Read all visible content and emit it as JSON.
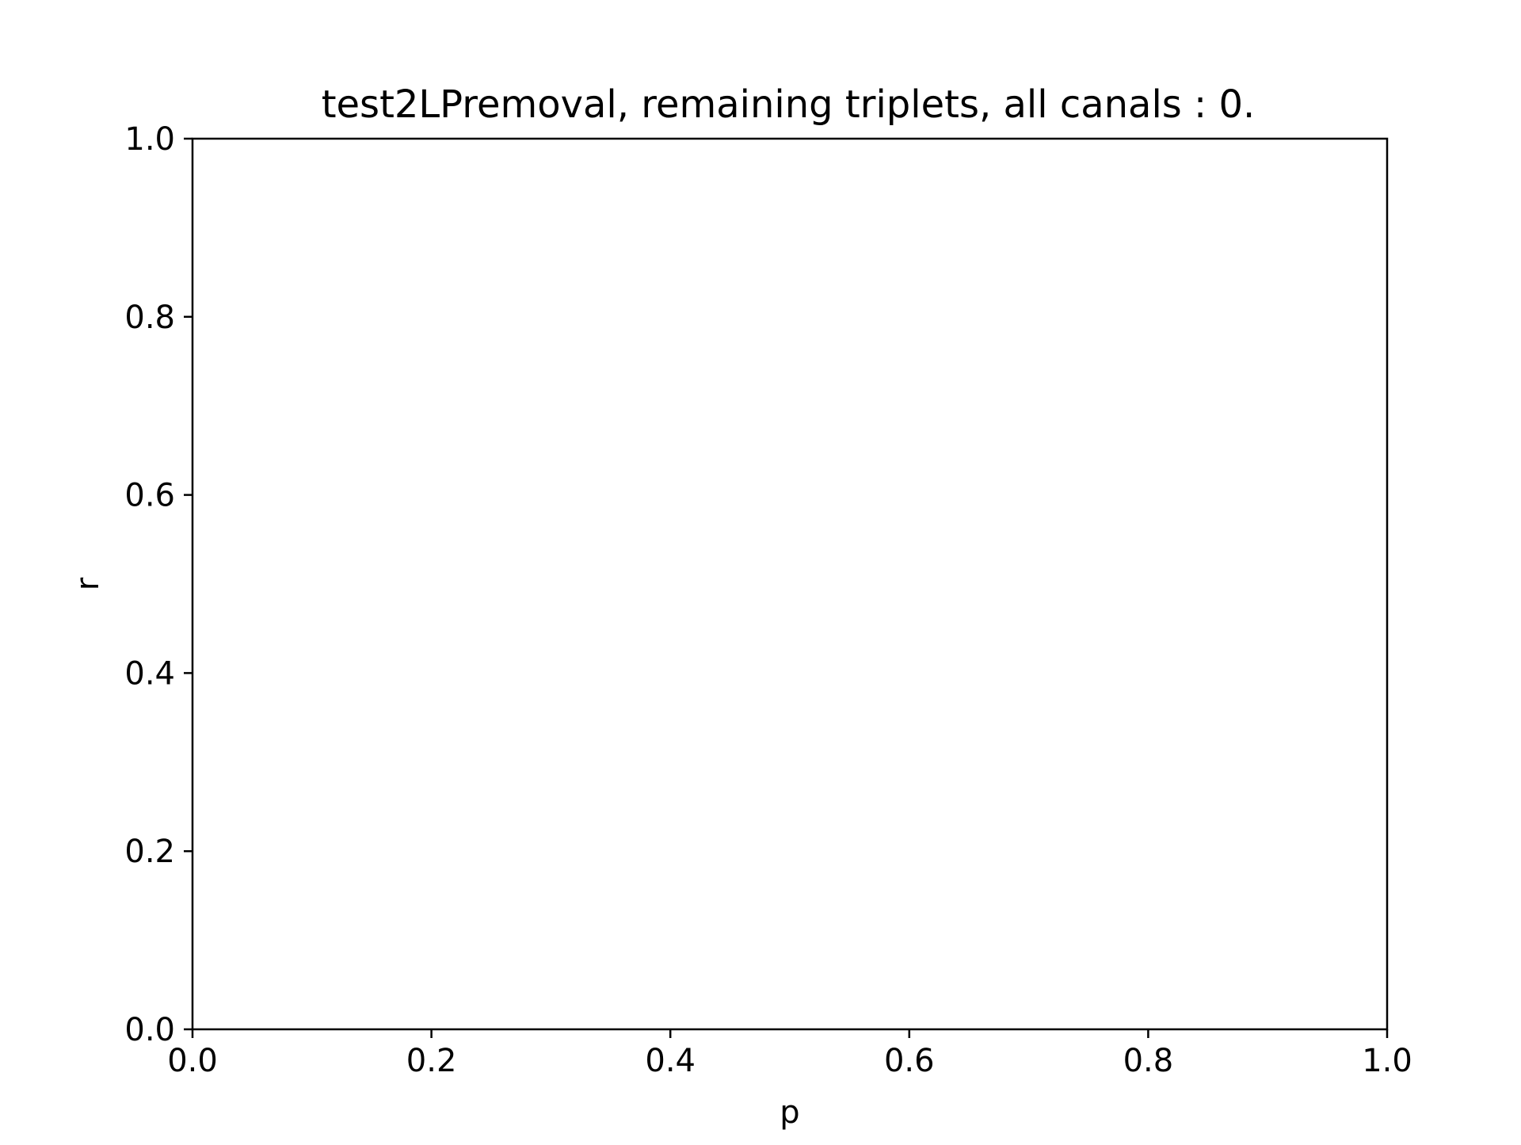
{
  "chart_data": {
    "type": "scatter",
    "title": "test2LPremoval, remaining triplets, all canals : 0.",
    "xlabel": "p",
    "ylabel": "r",
    "xlim": [
      0.0,
      1.0
    ],
    "ylim": [
      0.0,
      1.0
    ],
    "xticks": [
      0.0,
      0.2,
      0.4,
      0.6,
      0.8,
      1.0
    ],
    "yticks": [
      0.0,
      0.2,
      0.4,
      0.6,
      0.8,
      1.0
    ],
    "xtick_labels": [
      "0.0",
      "0.2",
      "0.4",
      "0.6",
      "0.8",
      "1.0"
    ],
    "ytick_labels": [
      "0.0",
      "0.2",
      "0.4",
      "0.6",
      "0.8",
      "1.0"
    ],
    "grid": false,
    "series": []
  }
}
